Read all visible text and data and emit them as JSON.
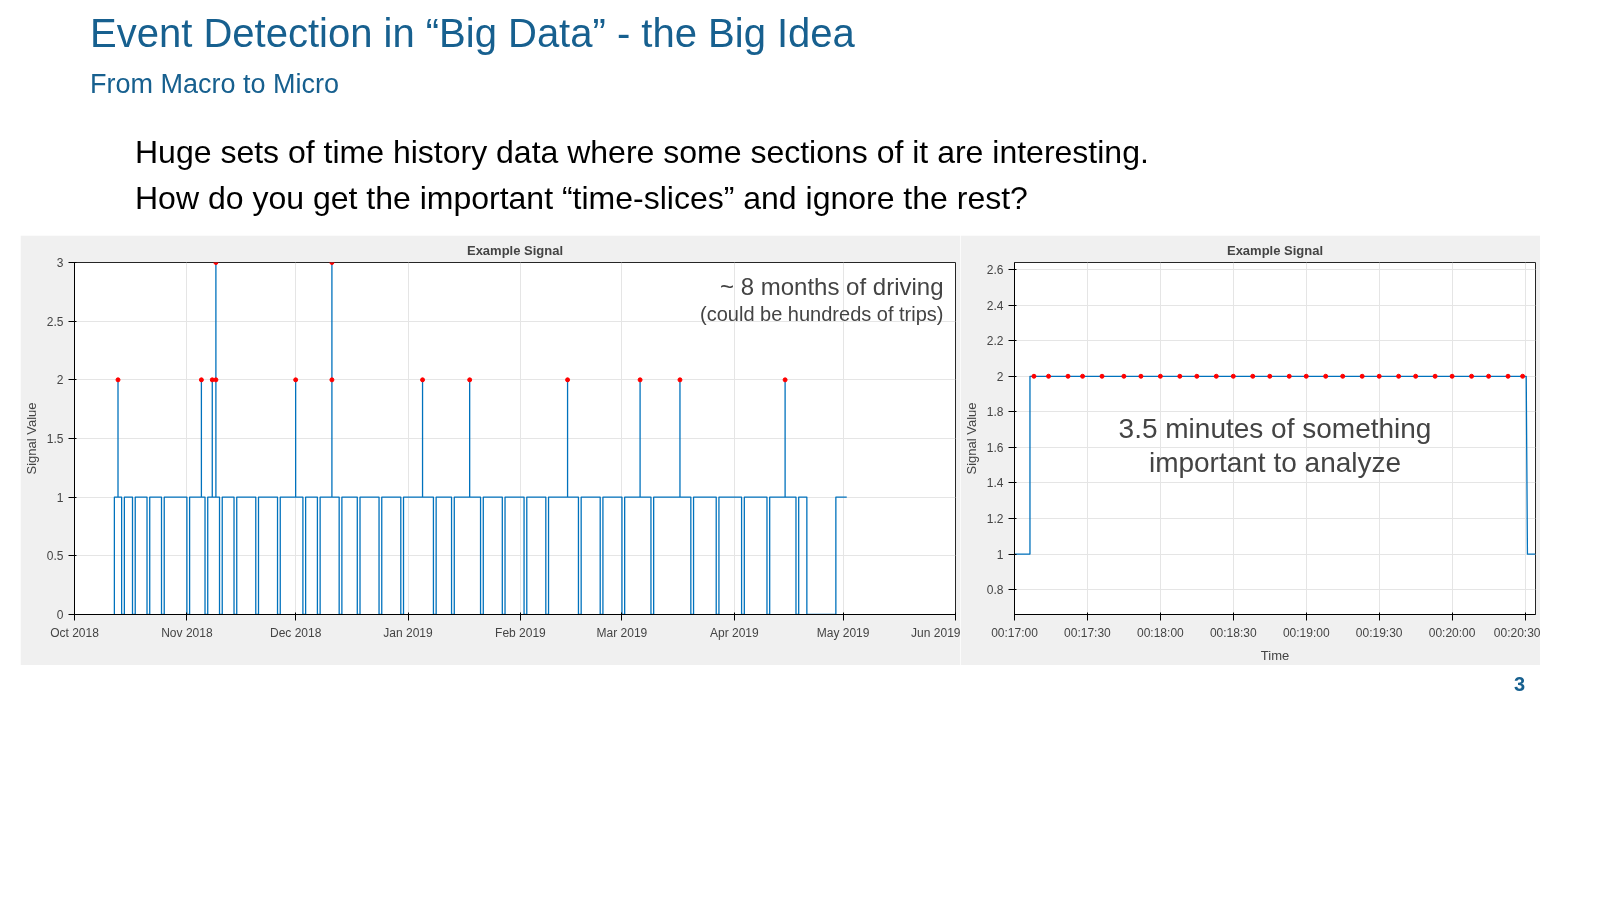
{
  "chart_data": [
    {
      "type": "other",
      "title": "Event Detection in “Big Data” - the Big Idea",
      "subtitle": "From Macro to Micro",
      "annotations": [
        "Huge sets of time history data where some sections of it are interesting.",
        "How do you get the important “time-slices” and ignore the rest?",
        "3"
      ]
    },
    {
      "type": "line",
      "title": "Example Signal",
      "ylabel": "Signal Value",
      "xlim": [
        "2018-10-01",
        "2019-06-01"
      ],
      "ylim": [
        0,
        3
      ],
      "xticks": [
        {
          "value": "2018-10-01",
          "label": "Oct 2018"
        },
        {
          "value": "2018-11-01",
          "label": "Nov 2018"
        },
        {
          "value": "2018-12-01",
          "label": "Dec 2018"
        },
        {
          "value": "2019-01-01",
          "label": "Jan 2019"
        },
        {
          "value": "2019-02-01",
          "label": "Feb 2019"
        },
        {
          "value": "2019-03-01",
          "label": "Mar 2019"
        },
        {
          "value": "2019-04-01",
          "label": "Apr 2019"
        },
        {
          "value": "2019-05-01",
          "label": "May 2019"
        },
        {
          "value": "2019-06-01",
          "label": "Jun 2019"
        }
      ],
      "yticks": [
        0,
        0.5,
        1,
        1.5,
        2,
        2.5,
        3
      ],
      "grid": true,
      "annotations": [
        "~ 8 months of driving",
        "(could be hundreds of trips)"
      ],
      "series": [
        {
          "type": "line",
          "color": "#0072bd",
          "x": [
            "2018-10-12",
            "2018-10-12",
            "2018-10-13",
            "2018-10-13",
            "2018-10-13",
            "2018-10-14",
            "2018-10-14",
            "2018-10-14T18:00",
            "2018-10-14T18:00",
            "2018-10-17",
            "2018-10-17",
            "2018-10-17T18:00",
            "2018-10-17T18:00",
            "2018-10-21",
            "2018-10-21",
            "2018-10-21T18:00",
            "2018-10-21T18:00",
            "2018-10-25",
            "2018-10-25",
            "2018-10-25T18:00",
            "2018-10-25T18:00",
            "2018-11-01",
            "2018-11-01",
            "2018-11-01T18:00",
            "2018-11-01T18:00",
            "2018-11-05",
            "2018-11-05",
            "2018-11-05",
            "2018-11-06",
            "2018-11-06",
            "2018-11-06T18:00",
            "2018-11-06T18:00",
            "2018-11-08",
            "2018-11-08",
            "2018-11-08",
            "2018-11-09",
            "2018-11-09",
            "2018-11-09",
            "2018-11-10",
            "2018-11-10",
            "2018-11-10T18:00",
            "2018-11-10T18:00",
            "2018-11-14",
            "2018-11-14",
            "2018-11-14T18:00",
            "2018-11-14T18:00",
            "2018-11-20",
            "2018-11-20",
            "2018-11-20T18:00",
            "2018-11-20T18:00",
            "2018-11-26",
            "2018-11-26",
            "2018-11-26T18:00",
            "2018-11-26T18:00",
            "2018-12-01",
            "2018-12-01",
            "2018-12-01",
            "2018-12-03",
            "2018-12-03",
            "2018-12-03T18:00",
            "2018-12-03T18:00",
            "2018-12-07",
            "2018-12-07",
            "2018-12-07T18:00",
            "2018-12-07T18:00",
            "2018-12-11",
            "2018-12-11",
            "2018-12-11",
            "2018-12-13",
            "2018-12-13",
            "2018-12-13T18:00",
            "2018-12-13T18:00",
            "2018-12-18",
            "2018-12-18",
            "2018-12-18T18:00",
            "2018-12-18T18:00",
            "2018-12-24",
            "2018-12-24",
            "2018-12-24T18:00",
            "2018-12-24T18:00",
            "2018-12-30",
            "2018-12-30",
            "2018-12-30T18:00",
            "2018-12-30T18:00",
            "2019-01-05",
            "2019-01-05",
            "2019-01-05",
            "2019-01-08",
            "2019-01-08",
            "2019-01-08T18:00",
            "2019-01-08T18:00",
            "2019-01-13",
            "2019-01-13",
            "2019-01-13T18:00",
            "2019-01-13T18:00",
            "2019-01-18",
            "2019-01-18",
            "2019-01-18",
            "2019-01-21",
            "2019-01-21",
            "2019-01-21T18:00",
            "2019-01-21T18:00",
            "2019-01-27",
            "2019-01-27",
            "2019-01-27T18:00",
            "2019-01-27T18:00",
            "2019-02-02",
            "2019-02-02",
            "2019-02-02T18:00",
            "2019-02-02T18:00",
            "2019-02-08",
            "2019-02-08",
            "2019-02-08T18:00",
            "2019-02-08T18:00",
            "2019-02-14",
            "2019-02-14",
            "2019-02-14",
            "2019-02-17",
            "2019-02-17",
            "2019-02-17T18:00",
            "2019-02-17T18:00",
            "2019-02-23",
            "2019-02-23",
            "2019-02-23T18:00",
            "2019-02-23T18:00",
            "2019-03-01",
            "2019-03-01",
            "2019-03-01T18:00",
            "2019-03-01T18:00",
            "2019-03-06",
            "2019-03-06",
            "2019-03-06",
            "2019-03-09",
            "2019-03-09",
            "2019-03-09T18:00",
            "2019-03-09T18:00",
            "2019-03-17",
            "2019-03-17",
            "2019-03-17",
            "2019-03-20",
            "2019-03-20",
            "2019-03-20T18:00",
            "2019-03-20T18:00",
            "2019-03-27",
            "2019-03-27",
            "2019-03-27T18:00",
            "2019-03-27T18:00",
            "2019-04-03",
            "2019-04-03",
            "2019-04-03T18:00",
            "2019-04-03T18:00",
            "2019-04-10",
            "2019-04-10",
            "2019-04-10T18:00",
            "2019-04-10T18:00",
            "2019-04-15",
            "2019-04-15",
            "2019-04-15",
            "2019-04-18",
            "2019-04-18",
            "2019-04-18T18:00",
            "2019-04-18T18:00",
            "2019-04-21",
            "2019-04-21",
            "2019-04-29",
            "2019-04-29",
            "2019-05-02"
          ],
          "values": [
            0,
            1,
            1,
            2,
            1,
            1,
            0,
            0,
            1,
            1,
            0,
            0,
            1,
            1,
            0,
            0,
            1,
            1,
            0,
            0,
            1,
            1,
            0,
            0,
            1,
            1,
            2,
            1,
            1,
            0,
            0,
            1,
            1,
            2,
            1,
            1,
            3,
            1,
            1,
            0,
            0,
            1,
            1,
            0,
            0,
            1,
            1,
            0,
            0,
            1,
            1,
            0,
            0,
            1,
            1,
            2,
            1,
            1,
            0,
            0,
            1,
            1,
            0,
            0,
            1,
            1,
            3,
            1,
            1,
            0,
            0,
            1,
            1,
            0,
            0,
            1,
            1,
            0,
            0,
            1,
            1,
            0,
            0,
            1,
            1,
            2,
            1,
            1,
            0,
            0,
            1,
            1,
            0,
            0,
            1,
            1,
            2,
            1,
            1,
            0,
            0,
            1,
            1,
            0,
            0,
            1,
            1,
            0,
            0,
            1,
            1,
            0,
            0,
            1,
            1,
            2,
            1,
            1,
            0,
            0,
            1,
            1,
            0,
            0,
            1,
            1,
            0,
            0,
            1,
            1,
            2,
            1,
            1,
            0,
            0,
            1,
            1,
            2,
            1,
            1,
            0,
            0,
            1,
            1,
            0,
            0,
            1,
            1,
            0,
            0,
            1,
            1,
            0,
            0,
            1,
            1,
            2,
            1,
            1,
            0,
            0,
            1,
            1,
            0,
            0,
            1,
            1
          ]
        },
        {
          "type": "scatter",
          "color": "#ff0000",
          "marker": "circle",
          "x": [
            "2018-10-13",
            "2018-11-05",
            "2018-11-08",
            "2018-11-09",
            "2018-11-09",
            "2018-12-01",
            "2018-12-11",
            "2018-12-11",
            "2019-01-05",
            "2019-01-18",
            "2019-02-14",
            "2019-03-06",
            "2019-03-17",
            "2019-04-15"
          ],
          "values": [
            2,
            2,
            2,
            2,
            3,
            2,
            2,
            3,
            2,
            2,
            2,
            2,
            2,
            2
          ]
        }
      ]
    },
    {
      "type": "line",
      "title": "Example Signal",
      "xlabel": "Time",
      "ylabel": "Signal Value",
      "xlim": [
        0.283333,
        0.342861
      ],
      "ylim": [
        0.66,
        2.64
      ],
      "xticks": [
        {
          "value": 0.283333,
          "label": "00:17:00"
        },
        {
          "value": 0.291667,
          "label": "00:17:30"
        },
        {
          "value": 0.3,
          "label": "00:18:00"
        },
        {
          "value": 0.308333,
          "label": "00:18:30"
        },
        {
          "value": 0.316667,
          "label": "00:19:00"
        },
        {
          "value": 0.325,
          "label": "00:19:30"
        },
        {
          "value": 0.333333,
          "label": "00:20:00"
        },
        {
          "value": 0.341667,
          "label": "00:20:30"
        }
      ],
      "yticks": [
        0.8,
        1,
        1.2,
        1.4,
        1.6,
        1.8,
        2,
        2.2,
        2.4,
        2.6
      ],
      "grid": true,
      "annotations": [
        "3.5 minutes of something",
        "important to analyze"
      ],
      "series": [
        {
          "type": "line",
          "color": "#0072bd",
          "x": [
            0.283333,
            0.2851,
            0.2851,
            0.3418,
            0.34194,
            0.342861
          ],
          "values": [
            1,
            1,
            2,
            2,
            1,
            1
          ]
        },
        {
          "type": "scatter",
          "color": "#ff0000",
          "marker": "circle",
          "x": [
            0.285556,
            0.287222,
            0.289444,
            0.291111,
            0.293333,
            0.295833,
            0.297778,
            0.3,
            0.302222,
            0.304167,
            0.306389,
            0.308333,
            0.310556,
            0.3125,
            0.314722,
            0.316667,
            0.318889,
            0.320833,
            0.323056,
            0.325,
            0.327222,
            0.329167,
            0.331389,
            0.333333,
            0.335556,
            0.3375,
            0.339722,
            0.341389
          ],
          "values": [
            2,
            2,
            2,
            2,
            2,
            2,
            2,
            2,
            2,
            2,
            2,
            2,
            2,
            2,
            2,
            2,
            2,
            2,
            2,
            2,
            2,
            2,
            2,
            2,
            2,
            2,
            2,
            2
          ]
        }
      ]
    }
  ]
}
